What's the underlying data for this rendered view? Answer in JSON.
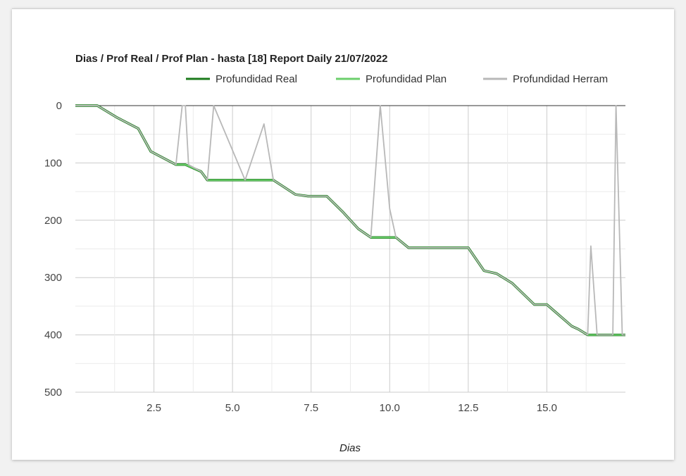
{
  "chart_data": {
    "type": "line",
    "title": "Dias / Prof Real / Prof Plan - hasta [18] Report Daily 21/07/2022",
    "xlabel": "Dias",
    "ylabel": "",
    "xlim": [
      0,
      17.5
    ],
    "ylim": [
      0,
      500
    ],
    "y_reversed": true,
    "grid": true,
    "legend_position": "top-right",
    "x_ticks": [
      "2.5",
      "5.0",
      "7.5",
      "10.0",
      "12.5",
      "15.0"
    ],
    "y_ticks": [
      "0",
      "100",
      "200",
      "300",
      "400",
      "500"
    ],
    "series": [
      {
        "name": "Profundidad Real",
        "color": "#1b7a1b",
        "points": [
          [
            0,
            0
          ],
          [
            0.7,
            0
          ],
          [
            1.3,
            20
          ],
          [
            2.0,
            40
          ],
          [
            2.4,
            80
          ],
          [
            3.2,
            103
          ],
          [
            3.5,
            103
          ],
          [
            4.0,
            115
          ],
          [
            4.2,
            130
          ],
          [
            6.3,
            130
          ],
          [
            7.0,
            155
          ],
          [
            7.4,
            158
          ],
          [
            8.0,
            158
          ],
          [
            8.5,
            185
          ],
          [
            9.0,
            215
          ],
          [
            9.4,
            230
          ],
          [
            10.2,
            230
          ],
          [
            10.6,
            248
          ],
          [
            12.5,
            248
          ],
          [
            13.0,
            288
          ],
          [
            13.4,
            293
          ],
          [
            13.9,
            310
          ],
          [
            14.6,
            347
          ],
          [
            15.0,
            347
          ],
          [
            15.8,
            385
          ],
          [
            16.0,
            390
          ],
          [
            16.3,
            400
          ],
          [
            17.5,
            400
          ]
        ]
      },
      {
        "name": "Profundidad Plan",
        "color": "#6ccf6c",
        "points": [
          [
            0,
            0
          ],
          [
            0.7,
            0
          ],
          [
            1.3,
            20
          ],
          [
            2.0,
            40
          ],
          [
            2.4,
            80
          ],
          [
            3.2,
            103
          ],
          [
            3.5,
            103
          ],
          [
            4.0,
            115
          ],
          [
            4.2,
            130
          ],
          [
            6.3,
            130
          ],
          [
            7.0,
            155
          ],
          [
            7.4,
            158
          ],
          [
            8.0,
            158
          ],
          [
            8.5,
            185
          ],
          [
            9.0,
            215
          ],
          [
            9.4,
            230
          ],
          [
            10.2,
            230
          ],
          [
            10.6,
            248
          ],
          [
            12.5,
            248
          ],
          [
            13.0,
            288
          ],
          [
            13.4,
            293
          ],
          [
            13.9,
            310
          ],
          [
            14.6,
            347
          ],
          [
            15.0,
            347
          ],
          [
            15.8,
            385
          ],
          [
            16.0,
            390
          ],
          [
            16.3,
            400
          ],
          [
            17.5,
            400
          ]
        ]
      },
      {
        "name": "Profundidad Herram",
        "color": "#b8b8b8",
        "points": [
          [
            0,
            0
          ],
          [
            0.7,
            0
          ],
          [
            1.3,
            20
          ],
          [
            2.0,
            40
          ],
          [
            2.4,
            80
          ],
          [
            3.2,
            103
          ],
          [
            3.4,
            0
          ],
          [
            3.5,
            0
          ],
          [
            3.6,
            103
          ],
          [
            4.0,
            115
          ],
          [
            4.2,
            130
          ],
          [
            4.4,
            0
          ],
          [
            5.4,
            130
          ],
          [
            6.0,
            32
          ],
          [
            6.3,
            130
          ],
          [
            7.0,
            155
          ],
          [
            7.4,
            158
          ],
          [
            8.0,
            158
          ],
          [
            8.5,
            185
          ],
          [
            9.0,
            215
          ],
          [
            9.4,
            230
          ],
          [
            9.7,
            0
          ],
          [
            10.0,
            180
          ],
          [
            10.2,
            230
          ],
          [
            10.6,
            248
          ],
          [
            12.5,
            248
          ],
          [
            13.0,
            288
          ],
          [
            13.4,
            293
          ],
          [
            13.9,
            310
          ],
          [
            14.6,
            347
          ],
          [
            15.0,
            347
          ],
          [
            15.8,
            385
          ],
          [
            16.0,
            390
          ],
          [
            16.3,
            400
          ],
          [
            16.4,
            245
          ],
          [
            16.6,
            400
          ],
          [
            17.1,
            400
          ],
          [
            17.2,
            0
          ],
          [
            17.4,
            400
          ],
          [
            17.5,
            400
          ]
        ]
      }
    ]
  }
}
